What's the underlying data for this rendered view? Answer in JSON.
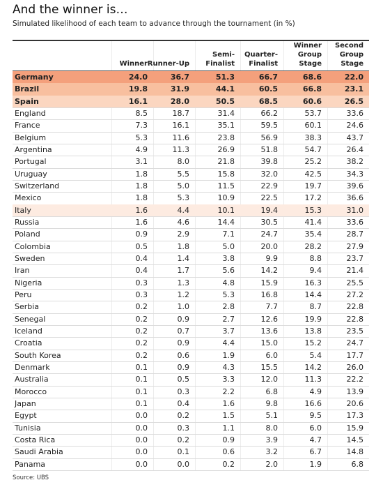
{
  "header": {
    "title": "And the winner is…",
    "subtitle": "Simulated likelihood of each team to advance through the tournament (in %)"
  },
  "table": {
    "columns": [
      [
        "Winner"
      ],
      [
        "Runner-Up"
      ],
      [
        "Semi-",
        "Finalist"
      ],
      [
        "Quarter-",
        "Finalist"
      ],
      [
        "Winner",
        "Group",
        "Stage"
      ],
      [
        "Second",
        "Group",
        "Stage"
      ]
    ],
    "rows": [
      [
        "Germany",
        "24.0",
        "36.7",
        "51.3",
        "66.7",
        "68.6",
        "22.0"
      ],
      [
        "Brazil",
        "19.8",
        "31.9",
        "44.1",
        "60.5",
        "66.8",
        "23.1"
      ],
      [
        "Spain",
        "16.1",
        "28.0",
        "50.5",
        "68.5",
        "60.6",
        "26.5"
      ],
      [
        "England",
        "8.5",
        "18.7",
        "31.4",
        "66.2",
        "53.7",
        "33.6"
      ],
      [
        "France",
        "7.3",
        "16.1",
        "35.1",
        "59.5",
        "60.1",
        "24.6"
      ],
      [
        "Belgium",
        "5.3",
        "11.6",
        "23.8",
        "56.9",
        "38.3",
        "43.7"
      ],
      [
        "Argentina",
        "4.9",
        "11.3",
        "26.9",
        "51.8",
        "54.7",
        "26.4"
      ],
      [
        "Portugal",
        "3.1",
        "8.0",
        "21.8",
        "39.8",
        "25.2",
        "38.2"
      ],
      [
        "Uruguay",
        "1.8",
        "5.5",
        "15.8",
        "32.0",
        "42.5",
        "34.3"
      ],
      [
        "Switzerland",
        "1.8",
        "5.0",
        "11.5",
        "22.9",
        "19.7",
        "39.6"
      ],
      [
        "Mexico",
        "1.8",
        "5.3",
        "10.9",
        "22.5",
        "17.2",
        "36.6"
      ],
      [
        "Italy",
        "1.6",
        "4.4",
        "10.1",
        "19.4",
        "15.3",
        "31.0"
      ],
      [
        "Russia",
        "1.6",
        "4.6",
        "14.4",
        "30.5",
        "41.4",
        "33.6"
      ],
      [
        "Poland",
        "0.9",
        "2.9",
        "7.1",
        "24.7",
        "35.4",
        "28.7"
      ],
      [
        "Colombia",
        "0.5",
        "1.8",
        "5.0",
        "20.0",
        "28.2",
        "27.9"
      ],
      [
        "Sweden",
        "0.4",
        "1.4",
        "3.8",
        "9.9",
        "8.8",
        "23.7"
      ],
      [
        "Iran",
        "0.4",
        "1.7",
        "5.6",
        "14.2",
        "9.4",
        "21.4"
      ],
      [
        "Nigeria",
        "0.3",
        "1.3",
        "4.8",
        "15.9",
        "16.3",
        "25.5"
      ],
      [
        "Peru",
        "0.3",
        "1.2",
        "5.3",
        "16.8",
        "14.4",
        "27.2"
      ],
      [
        "Serbia",
        "0.2",
        "1.0",
        "2.8",
        "7.7",
        "8.7",
        "22.8"
      ],
      [
        "Senegal",
        "0.2",
        "0.9",
        "2.7",
        "12.6",
        "19.9",
        "22.8"
      ],
      [
        "Iceland",
        "0.2",
        "0.7",
        "3.7",
        "13.6",
        "13.8",
        "23.5"
      ],
      [
        "Croatia",
        "0.2",
        "0.9",
        "4.4",
        "15.0",
        "15.2",
        "24.7"
      ],
      [
        "South Korea",
        "0.2",
        "0.6",
        "1.9",
        "6.0",
        "5.4",
        "17.7"
      ],
      [
        "Denmark",
        "0.1",
        "0.9",
        "4.3",
        "15.5",
        "14.2",
        "26.0"
      ],
      [
        "Australia",
        "0.1",
        "0.5",
        "3.3",
        "12.0",
        "11.3",
        "22.2"
      ],
      [
        "Morocco",
        "0.1",
        "0.3",
        "2.2",
        "6.8",
        "4.9",
        "13.9"
      ],
      [
        "Japan",
        "0.1",
        "0.4",
        "1.6",
        "9.8",
        "16.6",
        "20.6"
      ],
      [
        "Egypt",
        "0.0",
        "0.2",
        "1.5",
        "5.1",
        "9.5",
        "17.3"
      ],
      [
        "Tunisia",
        "0.0",
        "0.3",
        "1.1",
        "8.0",
        "6.0",
        "15.9"
      ],
      [
        "Costa Rica",
        "0.0",
        "0.2",
        "0.9",
        "3.9",
        "4.7",
        "14.5"
      ],
      [
        "Saudi Arabia",
        "0.0",
        "0.1",
        "0.6",
        "3.2",
        "6.7",
        "14.8"
      ],
      [
        "Panama",
        "0.0",
        "0.0",
        "0.2",
        "2.0",
        "1.9",
        "6.8"
      ]
    ]
  },
  "footer": {
    "source": "Source: UBS"
  }
}
